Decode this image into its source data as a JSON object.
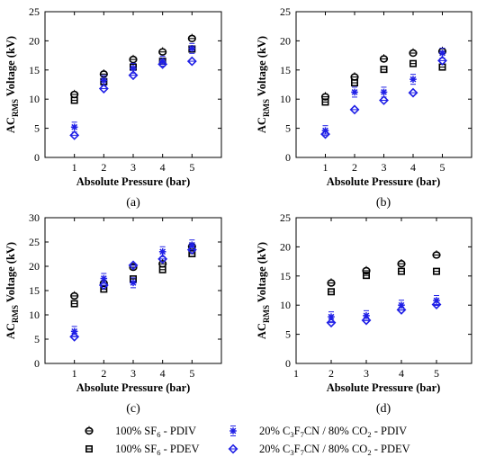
{
  "colors": {
    "sf6": "#000000",
    "c3f7cn": "#1f1fe6",
    "axis": "#000000"
  },
  "chart_data": [
    {
      "type": "scatter",
      "panel_label": "(a)",
      "xlabel": "Absolute Pressure (bar)",
      "ylabel": {
        "main": "AC",
        "sub": "RMS",
        "rest": " Voltage (kV)"
      },
      "xlim": [
        0,
        6
      ],
      "ylim": [
        0,
        25
      ],
      "xticks": [
        "1",
        "2",
        "3",
        "4",
        "5"
      ],
      "yticks": [
        "0",
        "5",
        "10",
        "15",
        "20",
        "25"
      ],
      "series": [
        {
          "key": "sf6_pdiv",
          "x": [
            1,
            2,
            3,
            4,
            5
          ],
          "y": [
            10.8,
            14.3,
            16.8,
            18.1,
            20.4
          ]
        },
        {
          "key": "sf6_pdev",
          "x": [
            1,
            2,
            3,
            4,
            5
          ],
          "y": [
            9.8,
            13.0,
            15.5,
            16.5,
            18.6
          ]
        },
        {
          "key": "c3f7cn_pdiv",
          "x": [
            1,
            2,
            3,
            4,
            5
          ],
          "y": [
            5.2,
            13.2,
            15.3,
            16.5,
            18.7
          ]
        },
        {
          "key": "c3f7cn_pdev",
          "x": [
            1,
            2,
            3,
            4,
            5
          ],
          "y": [
            3.8,
            11.8,
            14.1,
            16.0,
            16.5
          ]
        }
      ]
    },
    {
      "type": "scatter",
      "panel_label": "(b)",
      "xlabel": "Absolute Pressure (bar)",
      "ylabel": {
        "main": "AC",
        "sub": "RMS",
        "rest": " Voltage (kV)"
      },
      "xlim": [
        0,
        6
      ],
      "ylim": [
        0,
        25
      ],
      "xticks": [
        "1",
        "2",
        "3",
        "4",
        "5"
      ],
      "yticks": [
        "0",
        "5",
        "10",
        "15",
        "20",
        "25"
      ],
      "series": [
        {
          "key": "sf6_pdiv",
          "x": [
            1,
            2,
            3,
            4,
            5
          ],
          "y": [
            10.4,
            13.8,
            16.9,
            17.9,
            18.2
          ]
        },
        {
          "key": "sf6_pdev",
          "x": [
            1,
            2,
            3,
            4,
            5
          ],
          "y": [
            9.5,
            12.8,
            15.1,
            16.1,
            15.5
          ]
        },
        {
          "key": "c3f7cn_pdiv",
          "x": [
            1,
            2,
            3,
            4,
            5
          ],
          "y": [
            4.6,
            11.2,
            11.2,
            13.4,
            17.9
          ]
        },
        {
          "key": "c3f7cn_pdev",
          "x": [
            1,
            2,
            3,
            4,
            5
          ],
          "y": [
            4.0,
            8.2,
            9.8,
            11.1,
            16.6
          ]
        }
      ]
    },
    {
      "type": "scatter",
      "panel_label": "(c)",
      "xlabel": "Absolute Pressure (bar)",
      "ylabel": {
        "main": "AC",
        "sub": "RMS",
        "rest": " Voltage (kV)"
      },
      "xlim": [
        0,
        6
      ],
      "ylim": [
        0,
        30
      ],
      "xticks": [
        "1",
        "2",
        "3",
        "4",
        "5"
      ],
      "yticks": [
        "0",
        "5",
        "10",
        "15",
        "20",
        "25",
        "30"
      ],
      "series": [
        {
          "key": "sf6_pdiv",
          "x": [
            1,
            2,
            3,
            4,
            5
          ],
          "y": [
            13.9,
            16.5,
            19.8,
            20.5,
            24.1
          ]
        },
        {
          "key": "sf6_pdev",
          "x": [
            1,
            2,
            3,
            4,
            5
          ],
          "y": [
            12.3,
            15.3,
            17.4,
            19.3,
            22.6
          ]
        },
        {
          "key": "c3f7cn_pdiv",
          "x": [
            1,
            2,
            3,
            4,
            5
          ],
          "y": [
            6.6,
            17.5,
            16.6,
            23.0,
            24.4
          ]
        },
        {
          "key": "c3f7cn_pdev",
          "x": [
            1,
            2,
            3,
            4,
            5
          ],
          "y": [
            5.5,
            16.1,
            20.2,
            21.5,
            23.4
          ]
        }
      ]
    },
    {
      "type": "scatter",
      "panel_label": "(d)",
      "xlabel": "Absolute Pressure (bar)",
      "ylabel": {
        "main": "AC",
        "sub": "RMS",
        "rest": " Voltage (kV)"
      },
      "xlim": [
        1,
        6
      ],
      "ylim": [
        0,
        25
      ],
      "xticks": [
        "1",
        "2",
        "3",
        "4",
        "5"
      ],
      "yticks": [
        "0",
        "5",
        "10",
        "15",
        "20",
        "25"
      ],
      "series": [
        {
          "key": "sf6_pdiv",
          "x": [
            2,
            3,
            4,
            5
          ],
          "y": [
            13.8,
            15.9,
            17.1,
            18.6
          ]
        },
        {
          "key": "sf6_pdev",
          "x": [
            2,
            3,
            4,
            5
          ],
          "y": [
            12.3,
            15.1,
            15.8,
            15.8
          ]
        },
        {
          "key": "c3f7cn_pdiv",
          "x": [
            2,
            3,
            4,
            5
          ],
          "y": [
            8.0,
            8.2,
            10.0,
            10.8
          ]
        },
        {
          "key": "c3f7cn_pdev",
          "x": [
            2,
            3,
            4,
            5
          ],
          "y": [
            7.0,
            7.4,
            9.2,
            10.1
          ]
        }
      ]
    }
  ],
  "legend": {
    "items": [
      {
        "key": "sf6_pdiv",
        "parts": [
          [
            "100% SF",
            ""
          ],
          [
            "6",
            "sub"
          ],
          [
            " - PDIV",
            ""
          ]
        ]
      },
      {
        "key": "c3f7cn_pdiv",
        "parts": [
          [
            "20% C",
            ""
          ],
          [
            "3",
            "sub"
          ],
          [
            "F",
            ""
          ],
          [
            "7",
            "sub"
          ],
          [
            "CN / 80% CO",
            ""
          ],
          [
            "2",
            "sub"
          ],
          [
            " - PDIV",
            ""
          ]
        ]
      },
      {
        "key": "sf6_pdev",
        "parts": [
          [
            "100% SF",
            ""
          ],
          [
            "6",
            "sub"
          ],
          [
            " - PDEV",
            ""
          ]
        ]
      },
      {
        "key": "c3f7cn_pdev",
        "parts": [
          [
            "20% C",
            ""
          ],
          [
            "3",
            "sub"
          ],
          [
            "F",
            ""
          ],
          [
            "7",
            "sub"
          ],
          [
            "CN / 80% CO",
            ""
          ],
          [
            "2",
            "sub"
          ],
          [
            " - PDEV",
            ""
          ]
        ]
      }
    ]
  }
}
